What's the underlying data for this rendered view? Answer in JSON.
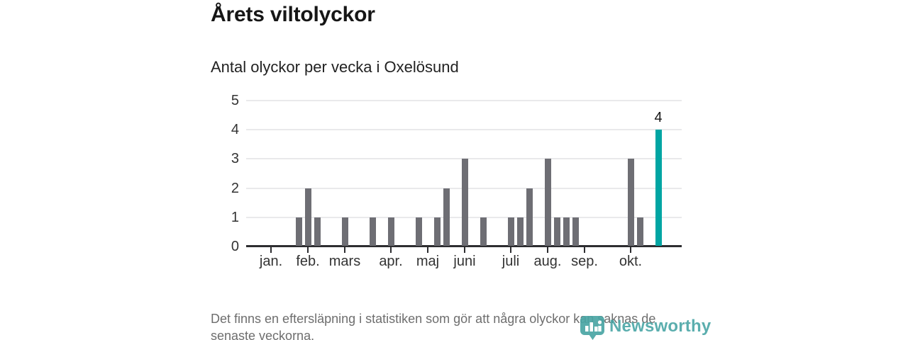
{
  "header": {
    "title": "Årets viltolyckor",
    "subtitle": "Antal olyckor per vecka i Oxelösund"
  },
  "chart_data": {
    "type": "bar",
    "title": "Antal olyckor per vecka i Oxelösund",
    "xlabel": "",
    "ylabel": "",
    "x_unit": "vecka",
    "weeks_range": [
      1,
      43
    ],
    "values": [
      0,
      0,
      0,
      1,
      2,
      1,
      0,
      0,
      1,
      0,
      0,
      1,
      0,
      1,
      0,
      0,
      1,
      0,
      1,
      2,
      0,
      3,
      0,
      1,
      0,
      0,
      1,
      1,
      2,
      0,
      3,
      1,
      1,
      1,
      0,
      0,
      0,
      0,
      0,
      3,
      1,
      0,
      4
    ],
    "highlight_week": 43,
    "highlight_value_label": "4",
    "y_ticks": [
      0,
      1,
      2,
      3,
      4,
      5
    ],
    "ylim": [
      0,
      5
    ],
    "grid": true,
    "legend": false,
    "month_ticks": [
      {
        "label": "jan.",
        "week": 1
      },
      {
        "label": "feb.",
        "week": 5
      },
      {
        "label": "mars",
        "week": 9
      },
      {
        "label": "apr.",
        "week": 14
      },
      {
        "label": "maj",
        "week": 18
      },
      {
        "label": "juni",
        "week": 22
      },
      {
        "label": "juli",
        "week": 27
      },
      {
        "label": "aug.",
        "week": 31
      },
      {
        "label": "sep.",
        "week": 35
      },
      {
        "label": "okt.",
        "week": 40
      }
    ],
    "colors": {
      "bar": "#6e6e74",
      "highlight": "#00a5a3",
      "grid": "#e9e9eb",
      "axis": "#2d2d30",
      "tick_label": "#333333"
    }
  },
  "footer": {
    "lines": [
      "Det finns en eftersläpning i statistiken som gör att några olyckor kan saknas de",
      "senaste veckorna."
    ]
  },
  "logo": {
    "wordmark": "Newsworthy",
    "color": "#3fa1a1"
  }
}
